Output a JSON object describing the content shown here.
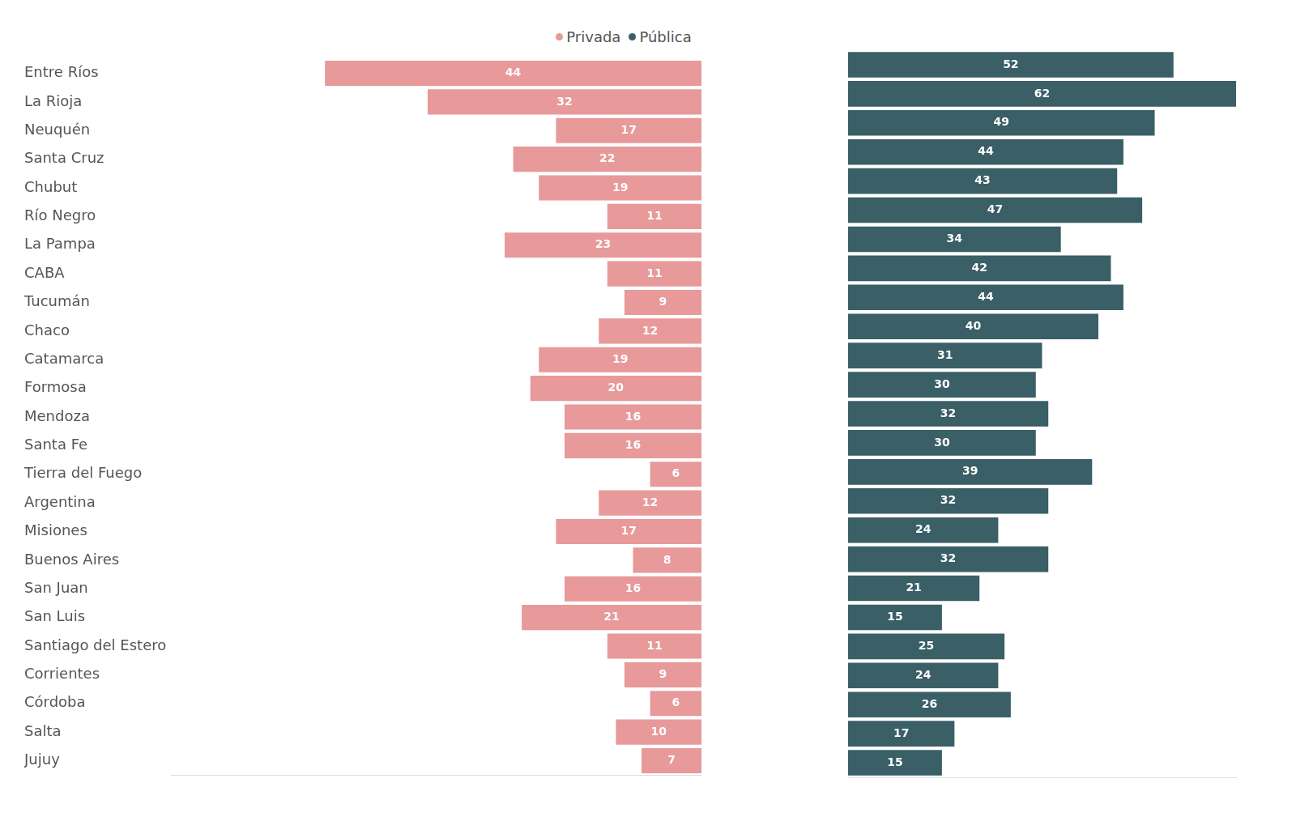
{
  "chart_data": {
    "type": "bar",
    "orientation": "horizontal",
    "categories": [
      "Entre Ríos",
      "La Rioja",
      "Neuquén",
      "Santa Cruz",
      "Chubut",
      "Río Negro",
      "La Pampa",
      "CABA",
      "Tucumán",
      "Chaco",
      "Catamarca",
      "Formosa",
      "Mendoza",
      "Santa Fe",
      "Tierra del Fuego",
      "Argentina",
      "Misiones",
      "Buenos Aires",
      "San Juan",
      "San Luis",
      "Santiago del Estero",
      "Corrientes",
      "Córdoba",
      "Salta",
      "Jujuy"
    ],
    "series": [
      {
        "name": "Privada",
        "color": "#e8999a",
        "values": [
          44,
          32,
          17,
          22,
          19,
          11,
          23,
          11,
          9,
          12,
          19,
          20,
          16,
          16,
          6,
          12,
          17,
          8,
          16,
          21,
          11,
          9,
          6,
          10,
          7
        ]
      },
      {
        "name": "Pública",
        "color": "#3a5f66",
        "values": [
          52,
          62,
          49,
          44,
          43,
          47,
          34,
          42,
          44,
          40,
          31,
          30,
          32,
          30,
          39,
          32,
          24,
          32,
          21,
          15,
          25,
          24,
          26,
          17,
          15
        ]
      }
    ],
    "xlim": [
      0,
      62
    ],
    "legend": "top",
    "data_labels": true,
    "tick_labels": "y",
    "grid": false
  }
}
